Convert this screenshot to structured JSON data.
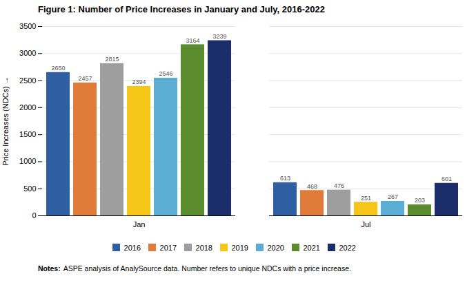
{
  "chart_data": {
    "type": "bar",
    "title": "Figure 1: Number of Price Increases in January and July, 2016-2022",
    "ylabel": "Price Increases (NDCs)",
    "categories": [
      "Jan",
      "Jul"
    ],
    "series": [
      {
        "name": "2016",
        "color": "#2E5FA3",
        "values": [
          2650,
          613
        ]
      },
      {
        "name": "2017",
        "color": "#E07B39",
        "values": [
          2457,
          468
        ]
      },
      {
        "name": "2018",
        "color": "#9E9E9E",
        "values": [
          2815,
          476
        ]
      },
      {
        "name": "2019",
        "color": "#F5C518",
        "values": [
          2394,
          251
        ]
      },
      {
        "name": "2020",
        "color": "#5BADD4",
        "values": [
          2546,
          267
        ]
      },
      {
        "name": "2021",
        "color": "#5A8C2E",
        "values": [
          3164,
          203
        ]
      },
      {
        "name": "2022",
        "color": "#1B2E6B",
        "values": [
          3239,
          601
        ]
      }
    ],
    "ylim": [
      0,
      3500
    ],
    "yticks": [
      0,
      500,
      1000,
      1500,
      2000,
      2500,
      3000,
      3500
    ],
    "grid": true,
    "data_labels": true,
    "legend": "bottom",
    "annotations": [
      "Notes:",
      "ASPE analysis of AnalySource data. Number refers to unique NDCs with a price increase."
    ]
  }
}
